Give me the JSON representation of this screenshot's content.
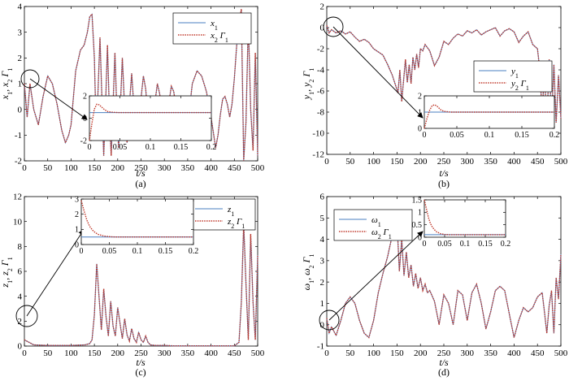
{
  "chart_data": [
    {
      "type": "line",
      "caption": "(a)",
      "xlabel": "t/s",
      "ylabel": "x1, x2 Γ1",
      "ylabel_parts": {
        "a": "x",
        "sa": "1",
        "sep": ", ",
        "b": "x",
        "sb": "2",
        "c": "Γ",
        "sc": "1"
      },
      "xlim": [
        0,
        500
      ],
      "ylim": [
        -2,
        4
      ],
      "xticks": [
        "0",
        "50",
        "100",
        "150",
        "200",
        "250",
        "300",
        "350",
        "400",
        "450",
        "500"
      ],
      "yticks": [
        "-2",
        "-1",
        "0",
        "1",
        "2",
        "3",
        "4"
      ],
      "colors": {
        "s1": "#4a7fc1",
        "s2": "#c0392b"
      },
      "legend": [
        {
          "a": "x",
          "sa": "1",
          "c": "",
          "sc": ""
        },
        {
          "a": "x",
          "sa": "2",
          "c": "Γ",
          "sc": "1"
        }
      ],
      "series": [
        {
          "x": [
            0,
            6,
            12,
            20,
            30,
            40,
            50,
            60,
            70,
            80,
            88,
            95,
            100,
            110,
            120,
            128,
            135,
            140,
            145,
            150,
            154,
            158,
            162,
            166,
            170,
            174,
            178,
            182,
            186,
            190,
            194,
            198,
            202,
            206,
            210,
            215,
            220,
            225,
            230,
            235,
            240,
            248,
            255,
            260,
            265,
            270,
            275,
            280,
            285,
            290,
            295,
            300,
            305,
            310,
            315,
            320,
            325,
            330,
            340,
            350,
            360,
            370,
            380,
            390,
            400,
            405,
            410,
            415,
            420,
            425,
            430,
            435,
            440,
            445,
            450,
            455,
            460,
            465,
            470,
            475,
            480,
            485,
            490,
            495,
            500
          ],
          "y": [
            1.0,
            -0.3,
            1.0,
            0.0,
            -0.6,
            0.5,
            1.3,
            1.0,
            0.2,
            -0.8,
            -1.3,
            -1.0,
            -0.6,
            1.5,
            2.3,
            2.5,
            3.0,
            3.6,
            3.7,
            2.0,
            -1.0,
            0.8,
            2.8,
            0.5,
            -1.8,
            0.2,
            2.5,
            0.0,
            -1.8,
            0.2,
            2.2,
            0.0,
            -1.5,
            0.2,
            2.0,
            0.0,
            -1.3,
            0.2,
            1.4,
            0.0,
            -1.0,
            0.1,
            1.3,
            0.8,
            -0.3,
            -1.1,
            -0.8,
            0.3,
            1.0,
            0.6,
            -0.3,
            -0.8,
            -0.5,
            0.3,
            0.9,
            0.7,
            0.1,
            -0.6,
            -1.1,
            -0.6,
            1.0,
            1.5,
            1.3,
            0.7,
            -0.3,
            -0.9,
            -1.5,
            -1.0,
            -0.2,
            0.4,
            0.5,
            0.2,
            -0.3,
            0.2,
            1.2,
            2.5,
            3.3,
            3.9,
            -2.0,
            -0.5,
            3.4,
            0.0,
            -1.6,
            2.2,
            -1.8
          ]
        }
      ],
      "inset": {
        "xlim": [
          0,
          0.2
        ],
        "ylim": [
          -2,
          2
        ],
        "xticks": [
          "0",
          "0.05",
          "0.1",
          "0.15",
          "0.2"
        ],
        "yticks": [
          "-2",
          "0",
          "2"
        ],
        "s1": {
          "x": [
            0,
            0.2
          ],
          "y": [
            0.5,
            0.5
          ]
        },
        "s2": {
          "x": [
            0,
            0.004,
            0.008,
            0.012,
            0.016,
            0.02,
            0.025,
            0.03,
            0.04,
            0.05,
            0.06,
            0.2
          ],
          "y": [
            -2,
            -0.5,
            0.8,
            1.25,
            1.2,
            1.0,
            0.75,
            0.6,
            0.52,
            0.5,
            0.5,
            0.5
          ]
        }
      }
    },
    {
      "type": "line",
      "caption": "(b)",
      "xlabel": "t/s",
      "ylabel": "y1, y2 Γ1",
      "ylabel_parts": {
        "a": "y",
        "sa": "1",
        "sep": ", ",
        "b": "y",
        "sb": "2",
        "c": "Γ",
        "sc": "1"
      },
      "xlim": [
        0,
        500
      ],
      "ylim": [
        -12,
        2
      ],
      "xticks": [
        "0",
        "50",
        "100",
        "150",
        "200",
        "250",
        "300",
        "350",
        "400",
        "450",
        "500"
      ],
      "yticks": [
        "-12",
        "-10",
        "-8",
        "-6",
        "-4",
        "-2",
        "0",
        "2"
      ],
      "colors": {
        "s1": "#4a7fc1",
        "s2": "#c0392b"
      },
      "legend": [
        {
          "a": "y",
          "sa": "1",
          "c": "",
          "sc": ""
        },
        {
          "a": "y",
          "sa": "2",
          "c": "Γ",
          "sc": "1"
        }
      ],
      "series": [
        {
          "x": [
            0,
            5,
            10,
            20,
            30,
            40,
            50,
            60,
            70,
            80,
            90,
            100,
            110,
            120,
            130,
            140,
            148,
            152,
            156,
            160,
            164,
            168,
            172,
            176,
            180,
            184,
            188,
            192,
            196,
            200,
            205,
            210,
            220,
            230,
            240,
            250,
            260,
            270,
            280,
            290,
            300,
            310,
            320,
            330,
            340,
            350,
            360,
            370,
            380,
            390,
            400,
            410,
            420,
            430,
            440,
            450,
            455,
            460,
            465,
            470,
            475,
            480,
            485,
            490,
            495,
            500
          ],
          "y": [
            0.2,
            -0.5,
            -0.2,
            -0.5,
            -0.3,
            -0.6,
            -0.4,
            -0.9,
            -1.3,
            -1.1,
            -1.4,
            -2.0,
            -2.3,
            -2.6,
            -3.5,
            -4.5,
            -5.6,
            -6.2,
            -4.0,
            -7.0,
            -5.0,
            -3.0,
            -5.2,
            -3.5,
            -5.3,
            -2.8,
            -4.0,
            -2.5,
            -3.8,
            -2.0,
            -2.2,
            -1.6,
            -2.2,
            -3.6,
            -2.8,
            -1.3,
            -1.6,
            -1.0,
            -0.6,
            -0.8,
            -0.3,
            -0.5,
            -0.2,
            -0.7,
            -0.4,
            -0.2,
            0.0,
            -0.8,
            -0.3,
            -0.1,
            -0.4,
            -1.4,
            -0.8,
            -0.4,
            -1.6,
            -2.0,
            -4.0,
            -8.2,
            -4.0,
            -9.5,
            -3.0,
            -8.8,
            -3.5,
            -9.0,
            -4.5,
            -8.6
          ]
        }
      ],
      "inset": {
        "xlim": [
          0,
          0.2
        ],
        "ylim": [
          0,
          2
        ],
        "xticks": [
          "0",
          "0.05",
          "0.1",
          "0.15",
          "0.2"
        ],
        "yticks": [
          "0",
          "1",
          "2"
        ],
        "s1": {
          "x": [
            0,
            0.2
          ],
          "y": [
            1.0,
            1.0
          ]
        },
        "s2": {
          "x": [
            0,
            0.004,
            0.008,
            0.012,
            0.016,
            0.02,
            0.025,
            0.03,
            0.04,
            0.05,
            0.2
          ],
          "y": [
            0.0,
            0.6,
            1.1,
            1.4,
            1.45,
            1.35,
            1.15,
            1.05,
            1.0,
            1.0,
            1.0
          ]
        }
      }
    },
    {
      "type": "line",
      "caption": "(c)",
      "xlabel": "t/s",
      "ylabel": "z1, z2 Γ1",
      "ylabel_parts": {
        "a": "z",
        "sa": "1",
        "sep": ", ",
        "b": "z",
        "sb": "2",
        "c": "Γ",
        "sc": "1"
      },
      "xlim": [
        0,
        500
      ],
      "ylim": [
        0,
        12
      ],
      "xticks": [
        "0",
        "50",
        "100",
        "150",
        "200",
        "250",
        "300",
        "350",
        "400",
        "450",
        "500"
      ],
      "yticks": [
        "0",
        "2",
        "4",
        "6",
        "8",
        "10",
        "12"
      ],
      "colors": {
        "s1": "#4a7fc1",
        "s2": "#c0392b"
      },
      "legend": [
        {
          "a": "z",
          "sa": "1",
          "c": "",
          "sc": ""
        },
        {
          "a": "z",
          "sa": "2",
          "c": "Γ",
          "sc": "1"
        }
      ],
      "series": [
        {
          "x": [
            0,
            5,
            10,
            20,
            50,
            100,
            130,
            140,
            145,
            150,
            155,
            160,
            165,
            170,
            175,
            180,
            185,
            190,
            195,
            200,
            205,
            210,
            215,
            220,
            225,
            230,
            235,
            240,
            245,
            250,
            255,
            260,
            265,
            270,
            280,
            300,
            320,
            350,
            400,
            450,
            460,
            465,
            470,
            475,
            480,
            485,
            490,
            495,
            500
          ],
          "y": [
            0.5,
            0.4,
            0.3,
            0.1,
            0.05,
            0.05,
            0.1,
            0.2,
            0.5,
            2.5,
            6.6,
            4.0,
            1.3,
            4.6,
            2.4,
            0.8,
            3.6,
            1.6,
            0.8,
            3.1,
            1.8,
            0.6,
            2.2,
            0.9,
            0.4,
            1.4,
            0.6,
            0.3,
            1.1,
            0.5,
            0.3,
            0.8,
            0.3,
            0.1,
            0.05,
            0.05,
            0.02,
            0.02,
            0.02,
            0.02,
            0.3,
            3.5,
            9.8,
            5.0,
            0.5,
            9.0,
            3.5,
            0.5,
            7.3
          ]
        }
      ],
      "inset": {
        "xlim": [
          0,
          0.2
        ],
        "ylim": [
          0,
          3
        ],
        "xticks": [
          "0",
          "0.05",
          "0.1",
          "0.15",
          "0.2"
        ],
        "yticks": [
          "0",
          "1",
          "2",
          "3"
        ],
        "s1": {
          "x": [
            0,
            0.2
          ],
          "y": [
            0.5,
            0.5
          ]
        },
        "s2": {
          "x": [
            0,
            0.005,
            0.01,
            0.015,
            0.02,
            0.025,
            0.03,
            0.04,
            0.05,
            0.06,
            0.2
          ],
          "y": [
            2.9,
            2.2,
            1.6,
            1.2,
            0.95,
            0.78,
            0.67,
            0.56,
            0.52,
            0.5,
            0.5
          ]
        }
      }
    },
    {
      "type": "line",
      "caption": "(d)",
      "xlabel": "t/s",
      "ylabel": "ω1, ω2 Γ1",
      "ylabel_parts": {
        "a": "ω",
        "sa": "1",
        "sep": ", ",
        "b": "ω",
        "sb": "2",
        "c": "Γ",
        "sc": "1"
      },
      "xlim": [
        0,
        500
      ],
      "ylim": [
        -1,
        6
      ],
      "xticks": [
        "0",
        "50",
        "100",
        "150",
        "200",
        "250",
        "300",
        "350",
        "400",
        "450",
        "500"
      ],
      "yticks": [
        "-1",
        "0",
        "1",
        "2",
        "3",
        "4",
        "5",
        "6"
      ],
      "colors": {
        "s1": "#4a7fc1",
        "s2": "#c0392b"
      },
      "legend": [
        {
          "a": "ω",
          "sa": "1",
          "c": "",
          "sc": ""
        },
        {
          "a": "ω",
          "sa": "2",
          "c": "Γ",
          "sc": "1"
        }
      ],
      "series": [
        {
          "x": [
            0,
            5,
            10,
            20,
            30,
            40,
            50,
            60,
            70,
            80,
            90,
            100,
            110,
            120,
            130,
            140,
            145,
            150,
            155,
            160,
            165,
            170,
            175,
            180,
            185,
            190,
            195,
            200,
            205,
            210,
            215,
            220,
            230,
            240,
            250,
            260,
            270,
            280,
            290,
            300,
            310,
            320,
            330,
            340,
            350,
            360,
            370,
            380,
            390,
            400,
            410,
            420,
            430,
            440,
            450,
            460,
            465,
            470,
            475,
            480,
            485,
            490,
            495,
            500
          ],
          "y": [
            0.3,
            -0.4,
            -0.1,
            -0.5,
            0.2,
            1.0,
            1.3,
            1.0,
            0.2,
            -0.4,
            -0.6,
            0.2,
            1.5,
            2.4,
            3.2,
            4.2,
            4.6,
            4.8,
            2.5,
            4.0,
            2.3,
            3.4,
            2.2,
            2.8,
            1.8,
            2.4,
            1.7,
            2.2,
            1.6,
            1.9,
            1.5,
            1.6,
            1.1,
            0.0,
            1.4,
            1.0,
            0.0,
            1.6,
            1.4,
            0.2,
            1.5,
            1.9,
            1.0,
            -0.2,
            0.6,
            1.6,
            1.8,
            1.6,
            0.5,
            -0.6,
            0.2,
            0.8,
            0.6,
            0.8,
            1.3,
            1.5,
            0.6,
            -0.4,
            0.9,
            1.6,
            -0.4,
            2.2,
            1.2,
            3.3
          ]
        }
      ],
      "inset": {
        "xlim": [
          0,
          0.2
        ],
        "ylim": [
          0,
          1.5
        ],
        "xticks": [
          "0",
          "0.05",
          "0.1",
          "0.15",
          "0.2"
        ],
        "yticks": [
          "0",
          "0.5",
          "1",
          "1.5"
        ],
        "s1": {
          "x": [
            0,
            0.2
          ],
          "y": [
            0.1,
            0.1
          ]
        },
        "s2": {
          "x": [
            0,
            0.005,
            0.01,
            0.015,
            0.02,
            0.025,
            0.03,
            0.04,
            0.05,
            0.06,
            0.2
          ],
          "y": [
            1.6,
            1.15,
            0.8,
            0.55,
            0.4,
            0.3,
            0.22,
            0.14,
            0.11,
            0.1,
            0.1
          ]
        }
      }
    }
  ]
}
